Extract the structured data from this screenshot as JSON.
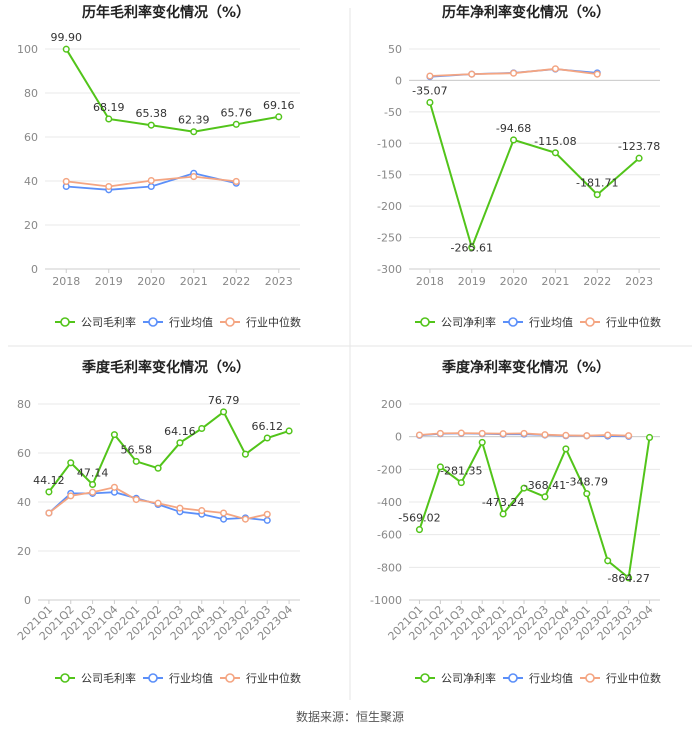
{
  "colors": {
    "company": "#52c41a",
    "industry_avg": "#5b8ff9",
    "industry_median": "#f4a582",
    "grid": "#e8e8e8",
    "axis": "#cccccc",
    "tick_text": "#888888",
    "label_text": "#333333",
    "title_text": "#222222",
    "divider": "#e5e5e5"
  },
  "source": "数据来源：恒生聚源",
  "chart_data": [
    {
      "type": "line",
      "title": "历年毛利率变化情况（%）",
      "categories": [
        "2018",
        "2019",
        "2020",
        "2021",
        "2022",
        "2023"
      ],
      "ylim": [
        0,
        100
      ],
      "yticks": [
        0,
        20,
        40,
        60,
        80,
        100
      ],
      "rotate_x": false,
      "series": [
        {
          "name": "公司毛利率",
          "key": "company",
          "values": [
            99.9,
            68.19,
            65.38,
            62.39,
            65.76,
            69.16
          ],
          "labels": [
            "99.90",
            "68.19",
            "65.38",
            "62.39",
            "65.76",
            "69.16"
          ]
        },
        {
          "name": "行业均值",
          "key": "industry_avg",
          "values": [
            37.5,
            36.0,
            37.5,
            43.5,
            39.0,
            null
          ]
        },
        {
          "name": "行业中位数",
          "key": "industry_median",
          "values": [
            39.8,
            37.5,
            40.2,
            42.0,
            39.8,
            null
          ]
        }
      ]
    },
    {
      "type": "line",
      "title": "历年净利率变化情况（%）",
      "categories": [
        "2018",
        "2019",
        "2020",
        "2021",
        "2022",
        "2023"
      ],
      "ylim": [
        -300,
        50
      ],
      "yticks": [
        -300,
        -250,
        -200,
        -150,
        -100,
        -50,
        0,
        50
      ],
      "rotate_x": false,
      "series": [
        {
          "name": "公司净利率",
          "key": "company",
          "values": [
            -35.07,
            -265.61,
            -94.68,
            -115.08,
            -181.71,
            -123.78
          ],
          "labels": [
            "-35.07",
            "-265.61",
            "-94.68",
            "-115.08",
            "-181.71",
            "-123.78"
          ]
        },
        {
          "name": "行业均值",
          "key": "industry_avg",
          "values": [
            6.0,
            10.0,
            12.0,
            18.0,
            12.0,
            null
          ]
        },
        {
          "name": "行业中位数",
          "key": "industry_median",
          "values": [
            7.0,
            10.0,
            11.5,
            18.5,
            10.0,
            null
          ]
        }
      ]
    },
    {
      "type": "line",
      "title": "季度毛利率变化情况（%）",
      "categories": [
        "2021Q1",
        "2021Q2",
        "2021Q3",
        "2021Q4",
        "2022Q1",
        "2022Q2",
        "2022Q3",
        "2022Q4",
        "2023Q1",
        "2023Q2",
        "2023Q3",
        "2023Q4"
      ],
      "ylim": [
        0,
        80
      ],
      "yticks": [
        0,
        20,
        40,
        60,
        80
      ],
      "rotate_x": true,
      "series": [
        {
          "name": "公司毛利率",
          "key": "company",
          "values": [
            44.12,
            56.0,
            47.14,
            67.5,
            56.58,
            53.8,
            64.16,
            70.0,
            76.79,
            59.5,
            66.12,
            69.0
          ],
          "labels": [
            "44.12",
            "",
            "47.14",
            "",
            "56.58",
            "",
            "64.16",
            "",
            "76.79",
            "",
            "66.12",
            ""
          ]
        },
        {
          "name": "行业均值",
          "key": "industry_avg",
          "values": [
            35.5,
            43.5,
            43.5,
            44.0,
            41.5,
            39.0,
            36.0,
            35.0,
            33.0,
            33.5,
            32.5,
            null
          ]
        },
        {
          "name": "行业中位数",
          "key": "industry_median",
          "values": [
            35.5,
            42.5,
            44.0,
            46.0,
            41.0,
            39.5,
            37.5,
            36.5,
            35.5,
            33.0,
            35.0,
            null
          ]
        }
      ]
    },
    {
      "type": "line",
      "title": "季度净利率变化情况（%）",
      "categories": [
        "2021Q1",
        "2021Q2",
        "2021Q3",
        "2021Q4",
        "2022Q1",
        "2022Q2",
        "2022Q3",
        "2022Q4",
        "2023Q1",
        "2023Q2",
        "2023Q3",
        "2023Q4"
      ],
      "ylim": [
        -1000,
        200
      ],
      "yticks": [
        -1000,
        -800,
        -600,
        -400,
        -200,
        0,
        200
      ],
      "rotate_x": true,
      "series": [
        {
          "name": "公司净利率",
          "key": "company",
          "values": [
            -569.02,
            -185,
            -281.35,
            -35,
            -473.24,
            -315,
            -368.41,
            -75,
            -348.79,
            -760,
            -864.27,
            -5
          ],
          "labels": [
            "-569.02",
            "",
            "-281.35",
            "",
            "-473.24",
            "",
            "-368.41",
            "",
            "-348.79",
            "",
            "-864.27",
            ""
          ]
        },
        {
          "name": "行业均值",
          "key": "industry_avg",
          "values": [
            8,
            18,
            20,
            18,
            15,
            16,
            10,
            6,
            5,
            4,
            2,
            null
          ]
        },
        {
          "name": "行业中位数",
          "key": "industry_median",
          "values": [
            10,
            20,
            22,
            20,
            18,
            20,
            12,
            8,
            6,
            10,
            6,
            null
          ]
        }
      ]
    }
  ]
}
